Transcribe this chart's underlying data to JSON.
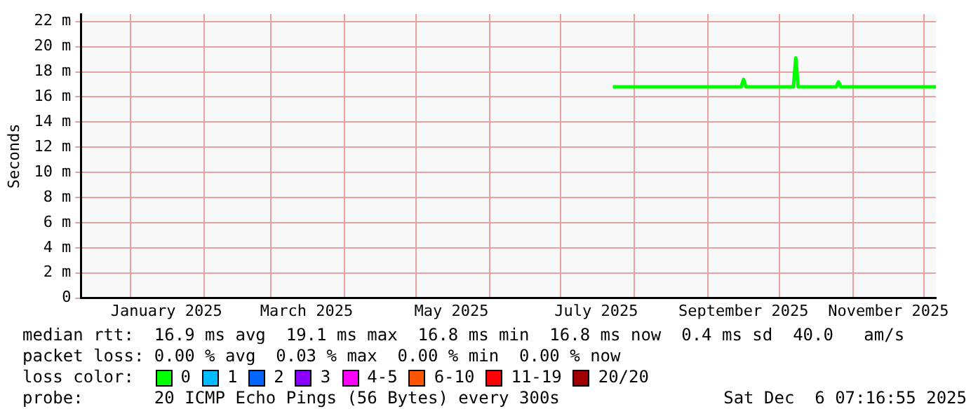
{
  "chart_data": {
    "type": "line",
    "ylabel": "Seconds",
    "legend_title": "loss color:",
    "legend": "bottom",
    "grid": true,
    "marker": "none",
    "line_style": "solid",
    "xlim": [
      "2024-12-11",
      "2025-12-06"
    ],
    "ylim": [
      0,
      22.6
    ],
    "xticks": [
      {
        "value": "2025-01-01",
        "label": null
      },
      {
        "value": "2025-01-16",
        "label": "January 2025"
      },
      {
        "value": "2025-02-01",
        "label": null
      },
      {
        "value": "2025-03-01",
        "label": null
      },
      {
        "value": "2025-03-16",
        "label": "March 2025"
      },
      {
        "value": "2025-04-01",
        "label": null
      },
      {
        "value": "2025-05-01",
        "label": null
      },
      {
        "value": "2025-05-16",
        "label": "May 2025"
      },
      {
        "value": "2025-06-01",
        "label": null
      },
      {
        "value": "2025-07-01",
        "label": null
      },
      {
        "value": "2025-07-16",
        "label": "July 2025"
      },
      {
        "value": "2025-08-01",
        "label": null
      },
      {
        "value": "2025-09-01",
        "label": null
      },
      {
        "value": "2025-09-16",
        "label": "September 2025"
      },
      {
        "value": "2025-10-01",
        "label": null
      },
      {
        "value": "2025-11-01",
        "label": null
      },
      {
        "value": "2025-11-16",
        "label": "November 2025"
      },
      {
        "value": "2025-12-01",
        "label": null
      }
    ],
    "yticks": [
      0,
      {
        "value": 2,
        "label": "2 m"
      },
      {
        "value": 4,
        "label": "4 m"
      },
      {
        "value": 6,
        "label": "6 m"
      },
      {
        "value": 8,
        "label": "8 m"
      },
      {
        "value": 10,
        "label": "10 m"
      },
      {
        "value": 12,
        "label": "12 m"
      },
      {
        "value": 14,
        "label": "14 m"
      },
      {
        "value": 16,
        "label": "16 m"
      },
      {
        "value": 18,
        "label": "18 m"
      },
      {
        "value": 20,
        "label": "20 m"
      },
      {
        "value": 22,
        "label": "22 m"
      }
    ],
    "x": [
      "2025-07-23",
      "2025-09-15",
      "2025-09-16",
      "2025-09-17",
      "2025-10-07",
      "2025-10-08",
      "2025-10-09",
      "2025-10-25",
      "2025-10-26",
      "2025-10-27",
      "2025-12-06"
    ],
    "series": [
      {
        "name": "0",
        "color": "#00ff00",
        "values": [
          16.8,
          16.8,
          17.4,
          16.8,
          16.8,
          19.1,
          16.8,
          16.8,
          17.2,
          16.8,
          16.8
        ]
      },
      {
        "name": "1",
        "color": "#00bbff",
        "values": [
          null,
          null,
          null,
          null,
          null,
          null,
          null,
          null,
          null,
          null,
          null
        ]
      },
      {
        "name": "2",
        "color": "#0066ff",
        "values": [
          null,
          null,
          null,
          null,
          null,
          null,
          null,
          null,
          null,
          null,
          null
        ]
      },
      {
        "name": "3",
        "color": "#8800ff",
        "values": [
          null,
          null,
          null,
          null,
          null,
          null,
          null,
          null,
          null,
          null,
          null
        ]
      },
      {
        "name": "4-5",
        "color": "#ff00ff",
        "values": [
          null,
          null,
          null,
          null,
          null,
          null,
          null,
          null,
          null,
          null,
          null
        ]
      },
      {
        "name": "6-10",
        "color": "#ff5500",
        "values": [
          null,
          null,
          null,
          null,
          null,
          null,
          null,
          null,
          null,
          null,
          null
        ]
      },
      {
        "name": "11-19",
        "color": "#ff0000",
        "values": [
          null,
          null,
          null,
          null,
          null,
          null,
          null,
          null,
          null,
          null,
          null
        ]
      },
      {
        "name": "20/20",
        "color": "#a10000",
        "values": [
          null,
          null,
          null,
          null,
          null,
          null,
          null,
          null,
          null,
          null,
          null
        ]
      }
    ],
    "annotations": [
      "median rtt:  16.9 ms avg  19.1 ms max  16.8 ms min  16.8 ms now  0.4 ms sd  40.0   am/s",
      "packet loss: 0.00 % avg  0.03 % max  0.00 % min  0.00 % now",
      "probe:       20 ICMP Echo Pings (56 Bytes) every 300s",
      "Sat Dec  6 07:16:55 2025"
    ]
  }
}
